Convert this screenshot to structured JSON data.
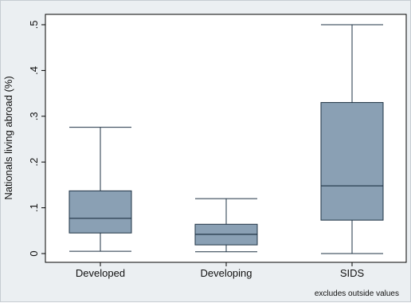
{
  "chart_data": {
    "type": "box",
    "ylabel": "Nationals living abroad (%)",
    "xlabel": "",
    "ylim": [
      0,
      0.5
    ],
    "yticks": [
      {
        "value": 0,
        "label": "0"
      },
      {
        "value": 0.1,
        "label": ".1"
      },
      {
        "value": 0.2,
        "label": ".2"
      },
      {
        "value": 0.3,
        "label": ".3"
      },
      {
        "value": 0.4,
        "label": ".4"
      },
      {
        "value": 0.5,
        "label": ".5"
      }
    ],
    "categories": [
      "Developed",
      "Developing",
      "SIDS"
    ],
    "boxes": [
      {
        "category": "Developed",
        "whisker_low": 0.005,
        "q1": 0.045,
        "median": 0.077,
        "q3": 0.137,
        "whisker_high": 0.276
      },
      {
        "category": "Developing",
        "whisker_low": 0.004,
        "q1": 0.019,
        "median": 0.042,
        "q3": 0.064,
        "whisker_high": 0.12
      },
      {
        "category": "SIDS",
        "whisker_low": 0.0,
        "q1": 0.073,
        "median": 0.148,
        "q3": 0.33,
        "whisker_high": 0.5
      }
    ],
    "note": "excludes outside values",
    "box_fill": "#8aa0b4",
    "box_stroke": "#1f3344"
  }
}
